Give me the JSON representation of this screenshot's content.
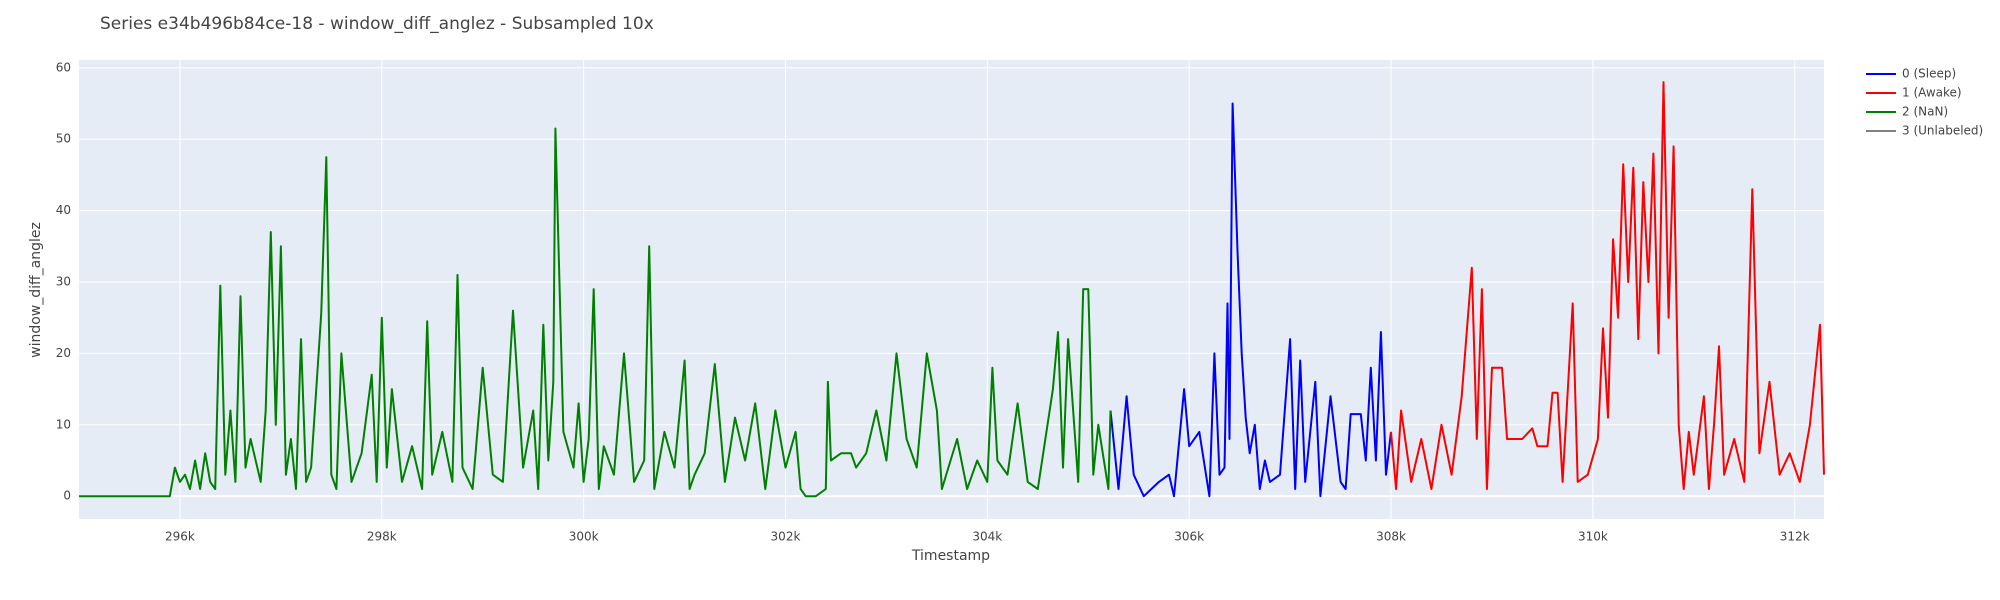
{
  "chart_data": {
    "type": "line",
    "title": "Series e34b496b84ce-18 - window_diff_anglez - Subsampled 10x",
    "x_label": "Timestamp",
    "y_label": "window_diff_anglez",
    "xlim": [
      295000,
      312290
    ],
    "ylim": [
      -3.2,
      61.1
    ],
    "xticks": [
      {
        "value": 296000,
        "label": "296k"
      },
      {
        "value": 298000,
        "label": "298k"
      },
      {
        "value": 300000,
        "label": "300k"
      },
      {
        "value": 302000,
        "label": "302k"
      },
      {
        "value": 304000,
        "label": "304k"
      },
      {
        "value": 306000,
        "label": "306k"
      },
      {
        "value": 308000,
        "label": "308k"
      },
      {
        "value": 310000,
        "label": "310k"
      },
      {
        "value": 312000,
        "label": "312k"
      }
    ],
    "yticks": [
      0,
      10,
      20,
      30,
      40,
      50,
      60
    ],
    "grid": true,
    "legend": "right",
    "series": [
      {
        "name": "0 (Sleep)",
        "color": "#0000ff",
        "x": [
          305220,
          305300,
          305380,
          305450,
          305550,
          305700,
          305800,
          305850,
          305950,
          306000,
          306100,
          306200,
          306250,
          306300,
          306350,
          306380,
          306400,
          306430,
          306480,
          306520,
          306560,
          306600,
          306650,
          306700,
          306750,
          306800,
          306900,
          307000,
          307050,
          307100,
          307150,
          307250,
          307300,
          307400,
          307500,
          307550,
          307600,
          307700,
          307750,
          307800,
          307850,
          307900,
          307950,
          308000
        ],
        "values": [
          12,
          1,
          14,
          3,
          0,
          2,
          3,
          0,
          15,
          7,
          9,
          0,
          20,
          3,
          4,
          27,
          8,
          55,
          34,
          20,
          11,
          6,
          10,
          1,
          5,
          2,
          3,
          22,
          1,
          19,
          2,
          16,
          0,
          14,
          2,
          1,
          11.5,
          11.5,
          5,
          18,
          5,
          23,
          3,
          9
        ]
      },
      {
        "name": "1 (Awake)",
        "color": "#ff0000",
        "x": [
          308000,
          308050,
          308100,
          308200,
          308300,
          308400,
          308500,
          308600,
          308700,
          308800,
          308850,
          308900,
          308950,
          309000,
          309100,
          309150,
          309300,
          309400,
          309450,
          309550,
          309600,
          309650,
          309700,
          309800,
          309850,
          309950,
          310050,
          310100,
          310150,
          310200,
          310250,
          310300,
          310350,
          310400,
          310450,
          310500,
          310550,
          310600,
          310650,
          310700,
          310750,
          310800,
          310850,
          310900,
          310950,
          311000,
          311100,
          311150,
          311200,
          311250,
          311300,
          311400,
          311500,
          311580,
          311650,
          311750,
          311850,
          311950,
          312050,
          312150,
          312250,
          312290
        ],
        "values": [
          9,
          1,
          12,
          2,
          8,
          1,
          10,
          3,
          14,
          32,
          8,
          29,
          1,
          18,
          18,
          8,
          8,
          9.5,
          7,
          7,
          14.5,
          14.5,
          2,
          27,
          2,
          3,
          8,
          23.5,
          11,
          36,
          25,
          46.5,
          30,
          46,
          22,
          44,
          30,
          48,
          20,
          58,
          25,
          49,
          10,
          1,
          9,
          3,
          14,
          1,
          10,
          21,
          3,
          8,
          2,
          43,
          6,
          16,
          3,
          6,
          2,
          10,
          24,
          3
        ]
      },
      {
        "name": "2 (NaN)",
        "color": "#008000",
        "x": [
          295000,
          295900,
          295950,
          296000,
          296050,
          296100,
          296150,
          296200,
          296250,
          296300,
          296350,
          296400,
          296450,
          296500,
          296550,
          296600,
          296650,
          296700,
          296800,
          296850,
          296900,
          296950,
          297000,
          297050,
          297100,
          297150,
          297200,
          297250,
          297300,
          297400,
          297450,
          297500,
          297550,
          297600,
          297700,
          297800,
          297900,
          297950,
          298000,
          298050,
          298100,
          298200,
          298300,
          298400,
          298450,
          298500,
          298600,
          298700,
          298750,
          298800,
          298900,
          299000,
          299100,
          299200,
          299300,
          299400,
          299500,
          299550,
          299600,
          299650,
          299700,
          299720,
          299800,
          299900,
          299950,
          300000,
          300050,
          300100,
          300150,
          300200,
          300300,
          300400,
          300500,
          300600,
          300650,
          300700,
          300800,
          300900,
          301000,
          301050,
          301100,
          301200,
          301300,
          301400,
          301500,
          301600,
          301700,
          301800,
          301900,
          302000,
          302100,
          302150,
          302200,
          302300,
          302400,
          302420,
          302450,
          302550,
          302650,
          302700,
          302800,
          302900,
          303000,
          303100,
          303200,
          303300,
          303400,
          303500,
          303550,
          303700,
          303800,
          303900,
          304000,
          304050,
          304100,
          304200,
          304300,
          304400,
          304500,
          304650,
          304700,
          304750,
          304800,
          304900,
          304950,
          305000,
          305050,
          305100,
          305200,
          305220
        ],
        "values": [
          0,
          0,
          4,
          2,
          3,
          1,
          5,
          1,
          6,
          2,
          1,
          29.5,
          3,
          12,
          2,
          28,
          4,
          8,
          2,
          12,
          37,
          10,
          35,
          3,
          8,
          1,
          22,
          2,
          4,
          25.5,
          47.5,
          3,
          1,
          20,
          2,
          6,
          17,
          2,
          25,
          4,
          15,
          2,
          7,
          1,
          24.5,
          3,
          9,
          2,
          31,
          4,
          1,
          18,
          3,
          2,
          26,
          4,
          12,
          1,
          24,
          5,
          16,
          51.5,
          9,
          4,
          13,
          2,
          8,
          29,
          1,
          7,
          3,
          20,
          2,
          5,
          35,
          1,
          9,
          4,
          19,
          1,
          3,
          6,
          18.5,
          2,
          11,
          5,
          13,
          1,
          12,
          4,
          9,
          1,
          0,
          0,
          1,
          16,
          5,
          6,
          6,
          4,
          6,
          12,
          5,
          20,
          8,
          4,
          20,
          12,
          1,
          8,
          1,
          5,
          2,
          18,
          5,
          3,
          13,
          2,
          1,
          15,
          23,
          4,
          22,
          2,
          29,
          29,
          3,
          10,
          1,
          12
        ]
      },
      {
        "name": "3 (Unlabeled)",
        "color": "#808080",
        "x": [],
        "values": []
      }
    ]
  }
}
